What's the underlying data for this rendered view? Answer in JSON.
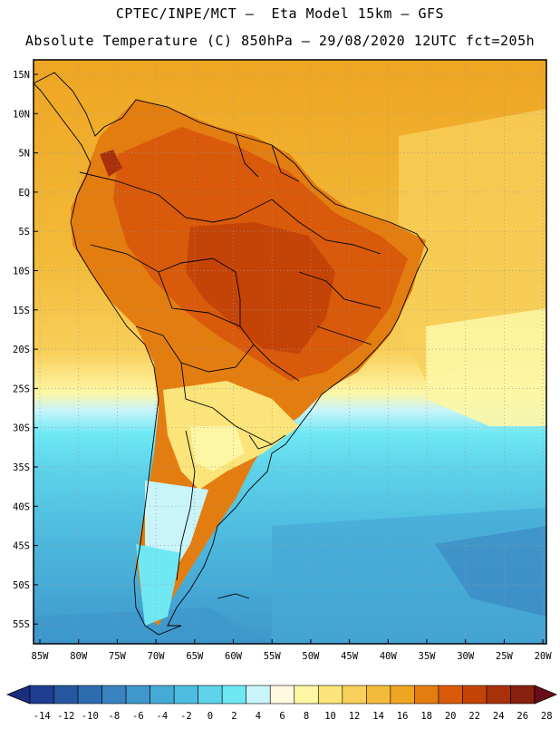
{
  "header": {
    "line1": "CPTEC/INPE/MCT –  Eta Model 15km – GFS",
    "line2": "Absolute Temperature (C) 850hPa – 29/08/2020 12UTC fct=205h"
  },
  "axes": {
    "lat_labels": [
      "15N",
      "10N",
      "5N",
      "EQ",
      "5S",
      "10S",
      "15S",
      "20S",
      "25S",
      "30S",
      "35S",
      "40S",
      "45S",
      "50S",
      "55S"
    ],
    "lon_labels": [
      "85W",
      "80W",
      "75W",
      "70W",
      "65W",
      "60W",
      "55W",
      "50W",
      "45W",
      "40W",
      "35W",
      "30W",
      "25W",
      "20W"
    ]
  },
  "colorbar": {
    "values": [
      "-14",
      "-12",
      "-10",
      "-8",
      "-6",
      "-4",
      "-2",
      "0",
      "2",
      "4",
      "6",
      "8",
      "10",
      "12",
      "14",
      "16",
      "18",
      "20",
      "22",
      "24",
      "26",
      "28"
    ],
    "colors": [
      "#1e3f8f",
      "#2657a0",
      "#2e6cb0",
      "#3a82c0",
      "#3f97cc",
      "#46aad6",
      "#4fbde0",
      "#5ed3ea",
      "#6fe8f4",
      "#c8f4fa",
      "#fff9e0",
      "#fdf6a4",
      "#fbe47a",
      "#f8cf5a",
      "#f3bb3a",
      "#eea522",
      "#e47d10",
      "#d85a0a",
      "#c44408",
      "#a8300a",
      "#86200f"
    ],
    "under_color": "#1a2f80",
    "over_color": "#6a0c1a"
  }
}
